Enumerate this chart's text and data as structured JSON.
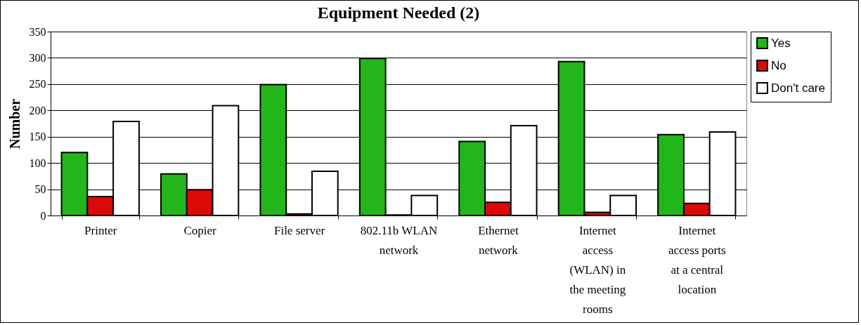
{
  "chart_data": {
    "type": "bar",
    "title": "Equipment Needed (2)",
    "ylabel": "Number",
    "categories": [
      "Printer",
      "Copier",
      "File server",
      "802.11b WLAN network",
      "Ethernet network",
      "Internet access (WLAN) in the meeting rooms",
      "Internet access ports at a central location"
    ],
    "series": [
      {
        "name": "Yes",
        "color": "#22b61a",
        "values": [
          120,
          79,
          249,
          299,
          141,
          293,
          154
        ]
      },
      {
        "name": "No",
        "color": "#dd0808",
        "values": [
          36,
          49,
          3,
          1,
          25,
          6,
          23
        ]
      },
      {
        "name": "Don't care",
        "color": "#ffffff",
        "values": [
          179,
          209,
          84,
          38,
          171,
          38,
          159
        ]
      }
    ],
    "ylim": [
      0,
      350
    ],
    "yticks": [
      0,
      50,
      100,
      150,
      200,
      250,
      300,
      350
    ],
    "grid": "y",
    "legend": "right"
  }
}
